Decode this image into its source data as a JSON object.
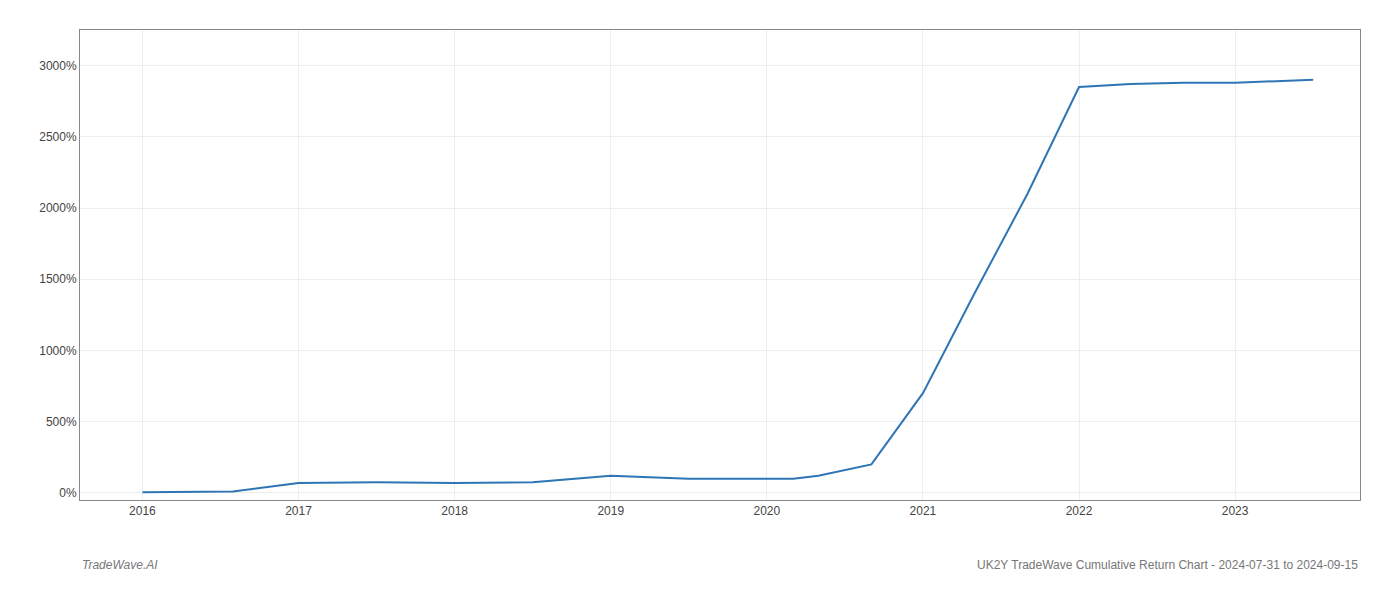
{
  "chart_data": {
    "type": "line",
    "x": [
      2016.0,
      2016.58,
      2017.0,
      2017.5,
      2018.0,
      2018.5,
      2019.0,
      2019.5,
      2019.75,
      2020.0,
      2020.08,
      2020.17,
      2020.33,
      2020.67,
      2021.0,
      2021.33,
      2021.67,
      2022.0,
      2022.33,
      2022.67,
      2023.0,
      2023.5
    ],
    "values": [
      5,
      10,
      70,
      75,
      70,
      75,
      120,
      100,
      100,
      100,
      100,
      100,
      120,
      200,
      700,
      1400,
      2100,
      2850,
      2870,
      2880,
      2880,
      2900
    ],
    "color": "#2e75b6",
    "xlim": [
      2015.6,
      2023.8
    ],
    "xticks": [
      2016,
      2017,
      2018,
      2019,
      2020,
      2021,
      2022,
      2023
    ],
    "ylim": [
      -50,
      3250
    ],
    "yticks": [
      {
        "value": 0,
        "label": "0%"
      },
      {
        "value": 500,
        "label": "500%"
      },
      {
        "value": 1000,
        "label": "1000%"
      },
      {
        "value": 1500,
        "label": "1500%"
      },
      {
        "value": 2000,
        "label": "2000%"
      },
      {
        "value": 2500,
        "label": "2500%"
      },
      {
        "value": 3000,
        "label": "3000%"
      }
    ],
    "grid": true,
    "annotations": [
      "TradeWave.AI",
      "UK2Y TradeWave Cumulative Return Chart - 2024-07-31 to 2024-09-15"
    ]
  }
}
